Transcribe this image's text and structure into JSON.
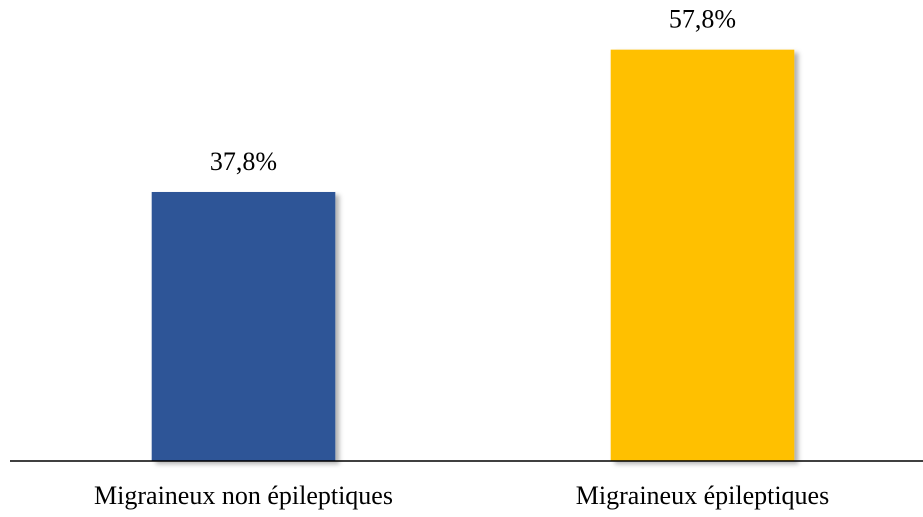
{
  "chart_data": {
    "type": "bar",
    "categories": [
      "Migraineux non épileptiques",
      "Migraineux épileptiques"
    ],
    "values": [
      37.8,
      57.8
    ],
    "value_labels": [
      "37,8%",
      "57,8%"
    ],
    "colors": [
      "#2f5597",
      "#ffc000"
    ],
    "ylim": [
      0,
      60
    ]
  }
}
